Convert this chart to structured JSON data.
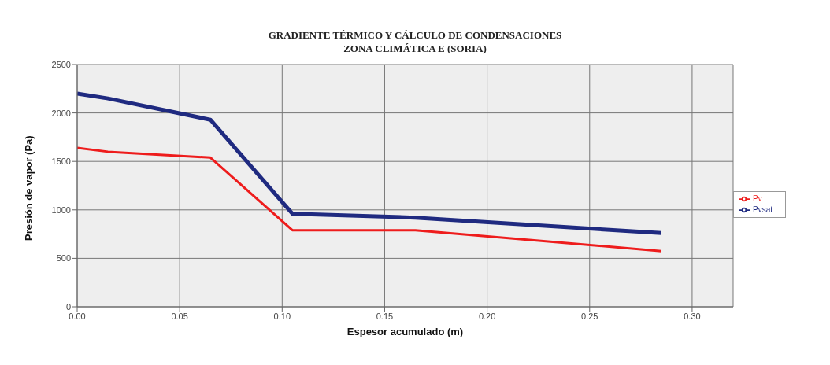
{
  "chart_data": {
    "type": "line",
    "title": "GRADIENTE TÉRMICO Y CÁLCULO DE CONDENSACIONES",
    "subtitle": "ZONA CLIMÁTICA E (SORIA)",
    "xlabel": "Espesor acumulado (m)",
    "ylabel": "Presión de vapor (Pa)",
    "x": [
      0,
      0.015,
      0.065,
      0.105,
      0.165,
      0.285
    ],
    "series": [
      {
        "name": "Pvsat",
        "color": "#1f2a80",
        "values": [
          2200,
          2150,
          1930,
          960,
          920,
          760
        ]
      },
      {
        "name": "Pv",
        "color": "#ee1c1c",
        "values": [
          1640,
          1600,
          1540,
          790,
          790,
          575
        ]
      }
    ],
    "xlim": [
      0,
      0.32
    ],
    "xticks": [
      {
        "value": 0,
        "label": "0.00"
      },
      {
        "value": 0.05,
        "label": "0.05"
      },
      {
        "value": 0.1,
        "label": "0.10"
      },
      {
        "value": 0.15,
        "label": "0.15"
      },
      {
        "value": 0.2,
        "label": "0.20"
      },
      {
        "value": 0.25,
        "label": "0.25"
      },
      {
        "value": 0.3,
        "label": "0.30"
      }
    ],
    "ylim": [
      0,
      2500
    ],
    "yticks": [
      0,
      500,
      1000,
      1500,
      2000,
      2500
    ],
    "grid": true,
    "legend": "right",
    "marker": "none",
    "line_style": "solid"
  }
}
